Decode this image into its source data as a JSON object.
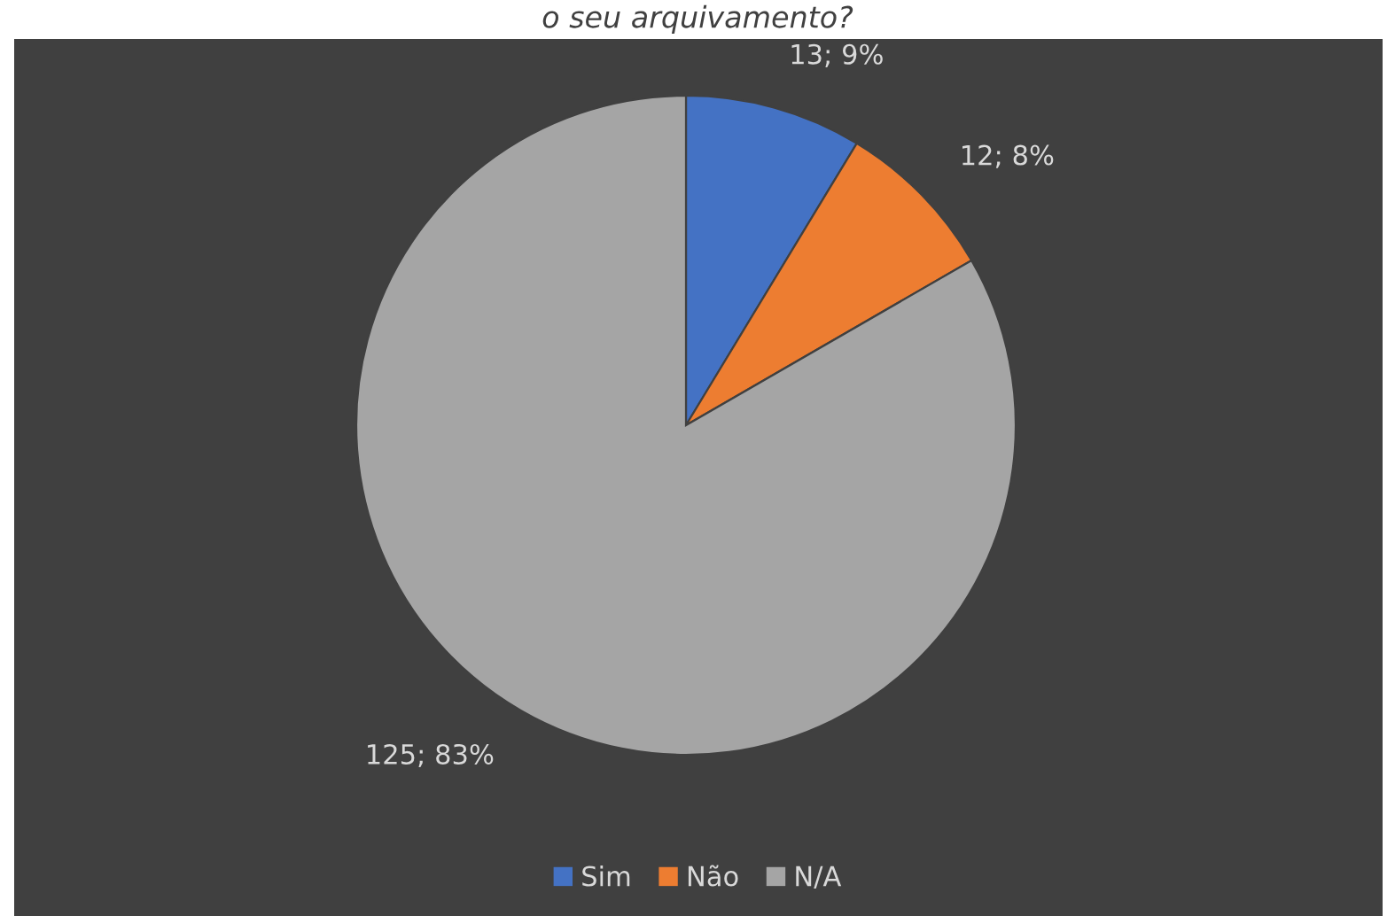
{
  "chart_data": {
    "type": "pie",
    "title": "o seu arquivamento?",
    "categories": [
      "Sim",
      "Não",
      "N/A"
    ],
    "values": [
      13,
      12,
      125
    ],
    "colors": [
      "#4472c4",
      "#ed7d31",
      "#a5a5a5"
    ],
    "value_labels": [
      "13; 9%",
      "12; 8%",
      "125; 83%"
    ],
    "legend": "bottom"
  }
}
